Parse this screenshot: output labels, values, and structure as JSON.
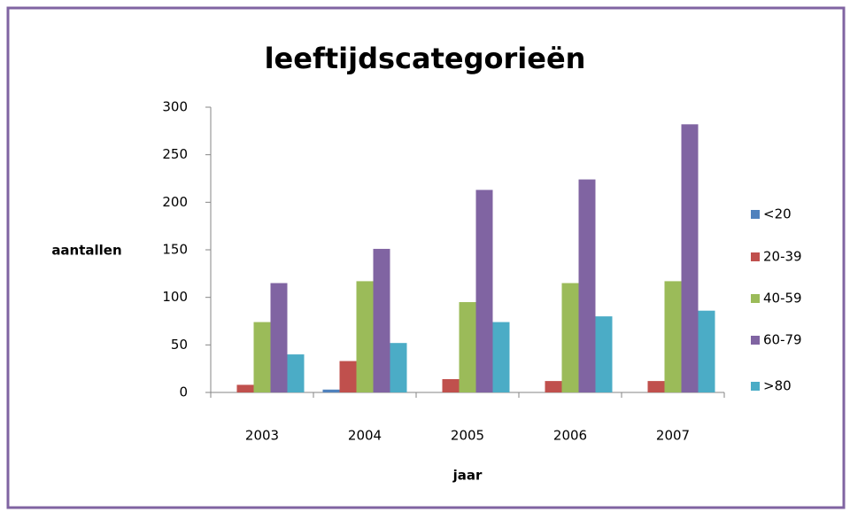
{
  "chart_data": {
    "type": "bar",
    "title": "leeftijdscategorieën",
    "x_label": "jaar",
    "y_label": "aantallen",
    "categories": [
      "2003",
      "2004",
      "2005",
      "2006",
      "2007"
    ],
    "series": [
      {
        "name": "<20",
        "color": "#4f81bd",
        "values": [
          0,
          3,
          0,
          0,
          0
        ]
      },
      {
        "name": "20-39",
        "color": "#c0504d",
        "values": [
          8,
          33,
          14,
          12,
          12
        ]
      },
      {
        "name": "40-59",
        "color": "#9bbb59",
        "values": [
          74,
          117,
          95,
          115,
          117
        ]
      },
      {
        "name": "60-79",
        "color": "#8064a2",
        "values": [
          115,
          151,
          213,
          224,
          282
        ]
      },
      {
        "name": ">80",
        "color": "#4bacc6",
        "values": [
          40,
          52,
          74,
          80,
          86
        ]
      }
    ],
    "ylim": [
      0,
      300
    ],
    "yticks": [
      0,
      50,
      100,
      150,
      200,
      250,
      300
    ],
    "grid": false,
    "legend": "right"
  }
}
